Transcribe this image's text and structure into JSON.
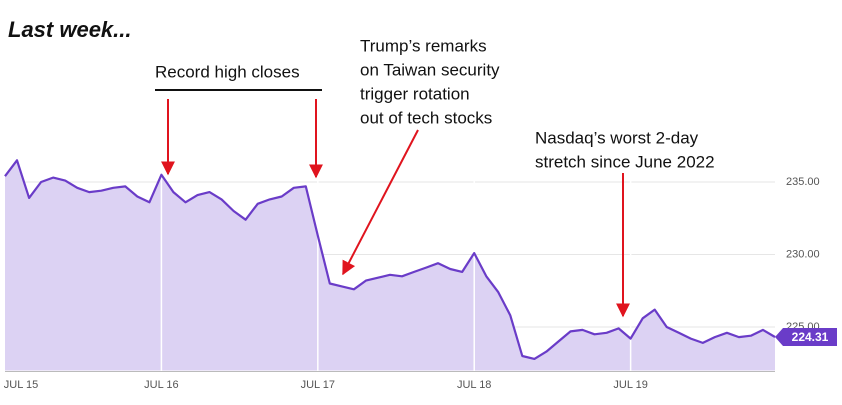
{
  "chart_data": {
    "type": "area",
    "title": "Last week...",
    "categories": [
      "JUL 15",
      null,
      null,
      null,
      null,
      null,
      null,
      null,
      null,
      null,
      null,
      null,
      null,
      "JUL 16",
      null,
      null,
      null,
      null,
      null,
      null,
      null,
      null,
      null,
      null,
      null,
      null,
      "JUL 17",
      null,
      null,
      null,
      null,
      null,
      null,
      null,
      null,
      null,
      null,
      null,
      null,
      "JUL 18",
      null,
      null,
      null,
      null,
      null,
      null,
      null,
      null,
      null,
      null,
      null,
      null,
      "JUL 19",
      null,
      null,
      null,
      null,
      null,
      null,
      null,
      null,
      null,
      null,
      null,
      null
    ],
    "series": [
      {
        "color": "#6a3cc8",
        "values": [
          235.4,
          236.5,
          233.9,
          235.0,
          235.3,
          235.1,
          234.6,
          234.3,
          234.4,
          234.6,
          234.7,
          234.0,
          233.6,
          235.5,
          234.3,
          233.6,
          234.1,
          234.3,
          233.8,
          233.0,
          232.4,
          233.5,
          233.8,
          234.0,
          234.6,
          234.7,
          231.3,
          228.0,
          227.8,
          227.6,
          228.2,
          228.4,
          228.6,
          228.5,
          228.8,
          229.1,
          229.4,
          229.0,
          228.8,
          230.1,
          228.5,
          227.4,
          225.8,
          223.0,
          222.8,
          223.3,
          224.0,
          224.7,
          224.8,
          224.5,
          224.6,
          224.9,
          224.2,
          225.6,
          226.2,
          225.0,
          224.6,
          224.2,
          223.9,
          224.3,
          224.6,
          224.3,
          224.4,
          224.8,
          224.31
        ]
      }
    ],
    "area_color": "#dcd2f3",
    "ylim": [
      222,
      241
    ],
    "yticks": [
      {
        "value": 225,
        "label": "225.00"
      },
      {
        "value": 230,
        "label": "230.00"
      },
      {
        "value": 235,
        "label": "235.00"
      }
    ],
    "annotations": [
      {
        "text": [
          "Record high closes"
        ]
      },
      {
        "text": [
          "Trump’s remarks",
          "on Taiwan security",
          "trigger rotation",
          "out of tech stocks"
        ]
      },
      {
        "text": [
          "Nasdaq’s worst 2-day",
          "stretch since June 2022"
        ]
      }
    ]
  }
}
